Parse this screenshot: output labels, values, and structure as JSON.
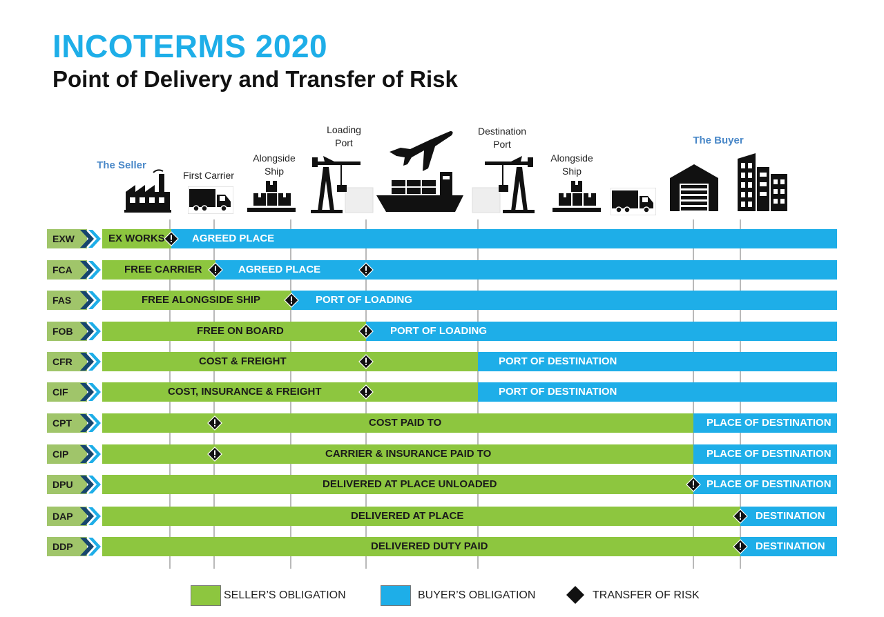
{
  "title": "INCOTERMS 2020",
  "subtitle": "Point of Delivery and Transfer of Risk",
  "parties": {
    "seller": "The Seller",
    "buyer": "The Buyer"
  },
  "stages": {
    "first_carrier": "First Carrier",
    "alongside_ship_origin": "Alongside\nShip",
    "loading_port": "Loading\nPort",
    "destination_port": "Destination\nPort",
    "alongside_ship_destination": "Alongside\nShip"
  },
  "icons": [
    "factory-icon",
    "truck-icon",
    "boxes-icon",
    "port-crane-icon",
    "airplane-icon",
    "cargo-ship-icon",
    "port-crane-icon",
    "boxes-icon",
    "truck-icon",
    "warehouse-icon",
    "buildings-icon"
  ],
  "colors": {
    "seller": "#8dc63f",
    "buyer": "#1eaee8",
    "code": "#a0c56a",
    "title": "#1eaee8",
    "party": "#4a88c8"
  },
  "rows": [
    {
      "code": "EXW",
      "seller_label": "EX WORKS",
      "buyer_label": "AGREED PLACE"
    },
    {
      "code": "FCA",
      "seller_label": "FREE CARRIER",
      "buyer_label": "AGREED PLACE"
    },
    {
      "code": "FAS",
      "seller_label": "FREE ALONGSIDE SHIP",
      "buyer_label": "PORT OF LOADING"
    },
    {
      "code": "FOB",
      "seller_label": "FREE  ON BOARD",
      "buyer_label": "PORT OF LOADING"
    },
    {
      "code": "CFR",
      "seller_label": "COST & FREIGHT",
      "buyer_label": "PORT OF DESTINATION"
    },
    {
      "code": "CIF",
      "seller_label": "COST, INSURANCE & FREIGHT",
      "buyer_label": "PORT OF DESTINATION"
    },
    {
      "code": "CPT",
      "seller_label": "COST PAID TO",
      "buyer_label": "PLACE OF DESTINATION"
    },
    {
      "code": "CIP",
      "seller_label": "CARRIER & INSURANCE PAID TO",
      "buyer_label": "PLACE OF DESTINATION"
    },
    {
      "code": "DPU",
      "seller_label": "DELIVERED AT PLACE UNLOADED",
      "buyer_label": "PLACE OF DESTINATION"
    },
    {
      "code": "DAP",
      "seller_label": "DELIVERED AT PLACE",
      "buyer_label": "DESTINATION"
    },
    {
      "code": "DDP",
      "seller_label": "DELIVERED DUTY PAID",
      "buyer_label": "DESTINATION"
    }
  ],
  "legend": {
    "seller": "SELLER’S OBLIGATION",
    "buyer": "BUYER’S OBLIGATION",
    "risk": "TRANSFER OF RISK"
  }
}
